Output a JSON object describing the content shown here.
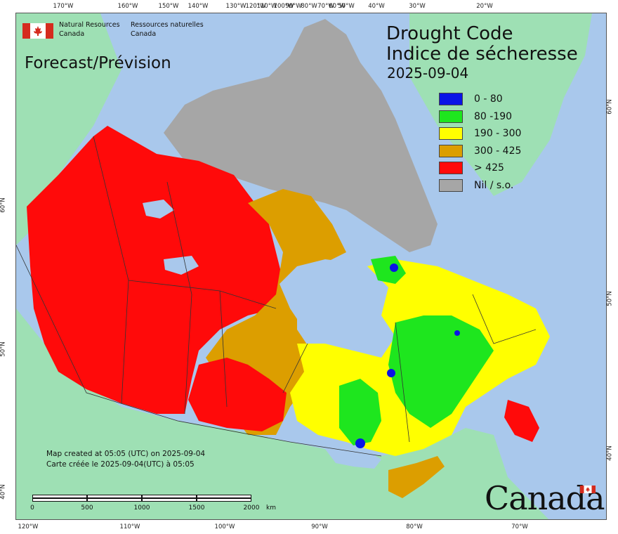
{
  "agency": {
    "en_line1": "Natural Resources",
    "en_line2": "Canada",
    "fr_line1": "Ressources naturelles",
    "fr_line2": "Canada"
  },
  "forecast_label": "Forecast/Prévision",
  "map": {
    "title_en": "Drought Code",
    "title_fr": "Indice de sécheresse",
    "date": "2025-09-04"
  },
  "legend": [
    {
      "label": "0 - 80",
      "color": "#0a14e6"
    },
    {
      "label": "80 -190",
      "color": "#1ee61e"
    },
    {
      "label": "190 - 300",
      "color": "#ffff00"
    },
    {
      "label": "300 - 425",
      "color": "#dc9e00"
    },
    {
      "label": "> 425",
      "color": "#ff0a0a"
    },
    {
      "label": "Nil / s.o.",
      "color": "#a6a6a6"
    }
  ],
  "graticule": {
    "top_ticks": [
      "170°W",
      "160°W",
      "150°W",
      "140°W",
      "130°W",
      "120°W",
      "110°W",
      "100°W",
      "90°W",
      "80°W",
      "70°W",
      "60°W",
      "50°W",
      "40°W",
      "30°W",
      "20°W"
    ],
    "bottom_ticks": [
      "120°W",
      "110°W",
      "100°W",
      "90°W",
      "80°W",
      "70°W"
    ],
    "left_ticks": [
      "60°N",
      "50°N",
      "40°N"
    ],
    "right_ticks": [
      "60°N",
      "50°N",
      "40°N"
    ]
  },
  "credits": {
    "line_en": "Map created at 05:05 (UTC) on 2025-09-04",
    "line_fr": "Carte créée le 2025-09-04(UTC) à 05:05"
  },
  "scale": {
    "labels": [
      "0",
      "500",
      "1000",
      "1500",
      "2000"
    ],
    "unit": "km"
  },
  "wordmark": "Canada",
  "colors": {
    "ocean": "#a9c8ec",
    "foreign_land": "#9ee0b4",
    "border": "#333333"
  }
}
